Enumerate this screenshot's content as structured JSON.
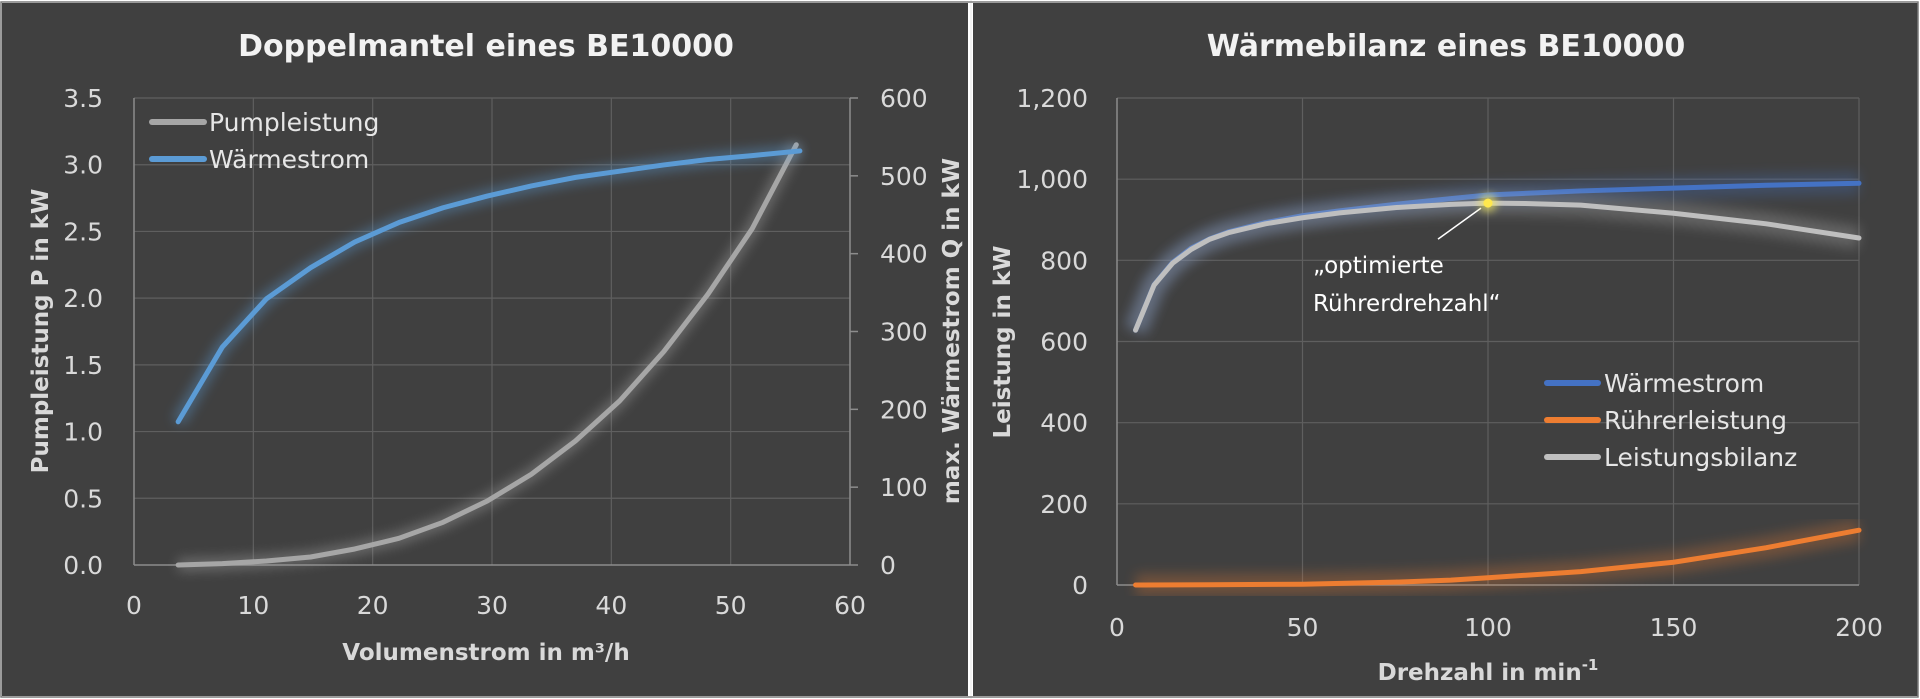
{
  "chart_data": [
    {
      "type": "line",
      "title": "Doppelmantel eines BE10000",
      "xlabel": "Volumenstrom in m³/h",
      "ylabel": "Pumpleistung P in kW",
      "y2label": "max. Wärmestrom Q in kW",
      "xlim": [
        0,
        60
      ],
      "ylim": [
        0,
        3.5
      ],
      "y2lim": [
        0,
        600
      ],
      "x_ticks": [
        "0",
        "10",
        "20",
        "30",
        "40",
        "50",
        "60"
      ],
      "y_ticks": [
        "0.0",
        "0.5",
        "1.0",
        "1.5",
        "2.0",
        "2.5",
        "3.0",
        "3.5"
      ],
      "y2_ticks": [
        "0",
        "100",
        "200",
        "300",
        "400",
        "500",
        "600"
      ],
      "grid": true,
      "legend_position": "top-left",
      "series": [
        {
          "name": "Pumpleistung",
          "axis": "left",
          "color": "#A6A6A6",
          "x": [
            3.7,
            7.4,
            11.1,
            14.8,
            18.5,
            22.2,
            25.9,
            29.6,
            33.3,
            37.0,
            40.7,
            44.4,
            48.1,
            51.8,
            55.5
          ],
          "y": [
            0.0,
            0.01,
            0.03,
            0.06,
            0.12,
            0.2,
            0.32,
            0.48,
            0.68,
            0.93,
            1.23,
            1.6,
            2.03,
            2.52,
            3.15
          ]
        },
        {
          "name": "Wärmestrom",
          "axis": "right",
          "color": "#5B9BD5",
          "x": [
            3.7,
            7.4,
            11.1,
            14.8,
            18.5,
            22.2,
            25.9,
            29.6,
            33.3,
            37.0,
            40.7,
            44.4,
            48.1,
            51.8,
            55.8
          ],
          "y": [
            184,
            280,
            342,
            382,
            415,
            440,
            459,
            474,
            487,
            498,
            506,
            514,
            521,
            526,
            532
          ]
        }
      ]
    },
    {
      "type": "line",
      "title": "Wärmebilanz eines BE10000",
      "xlabel": "Drehzahl in min",
      "xlabel_superscript": "-1",
      "ylabel": "Leistung in kW",
      "xlim": [
        0,
        200
      ],
      "ylim": [
        0,
        1200
      ],
      "x_ticks": [
        "0",
        "50",
        "100",
        "150",
        "200"
      ],
      "y_ticks": [
        "0",
        "200",
        "400",
        "600",
        "800",
        "1,000",
        "1,200"
      ],
      "grid": true,
      "legend_position": "center-right",
      "annotation": {
        "lines": [
          "„optimierte",
          "Rührerdrehzahl“"
        ],
        "x": 100,
        "y": 941,
        "marker_color": "#FFE84D"
      },
      "series": [
        {
          "name": "Wärmestrom",
          "color": "#4472C4",
          "x": [
            5,
            10,
            15,
            20,
            25,
            30,
            40,
            50,
            60,
            75,
            90,
            100,
            125,
            150,
            175,
            200
          ],
          "y": [
            628,
            740,
            795,
            830,
            853,
            870,
            893,
            910,
            922,
            938,
            952,
            961,
            971,
            978,
            985,
            990
          ]
        },
        {
          "name": "Rührerleistung",
          "color": "#ED7D31",
          "x": [
            5,
            25,
            50,
            75,
            90,
            100,
            125,
            150,
            175,
            200
          ],
          "y": [
            0,
            0.5,
            2,
            7,
            12,
            18,
            33,
            56,
            92,
            135
          ]
        },
        {
          "name": "Leistungsbilanz",
          "color": "#BFBFBF",
          "x": [
            5,
            10,
            15,
            20,
            25,
            30,
            40,
            50,
            60,
            75,
            90,
            100,
            110,
            125,
            150,
            175,
            200
          ],
          "y": [
            628,
            739,
            793,
            827,
            852,
            868,
            890,
            905,
            917,
            930,
            938,
            941,
            940,
            936,
            916,
            890,
            855
          ]
        }
      ]
    }
  ]
}
